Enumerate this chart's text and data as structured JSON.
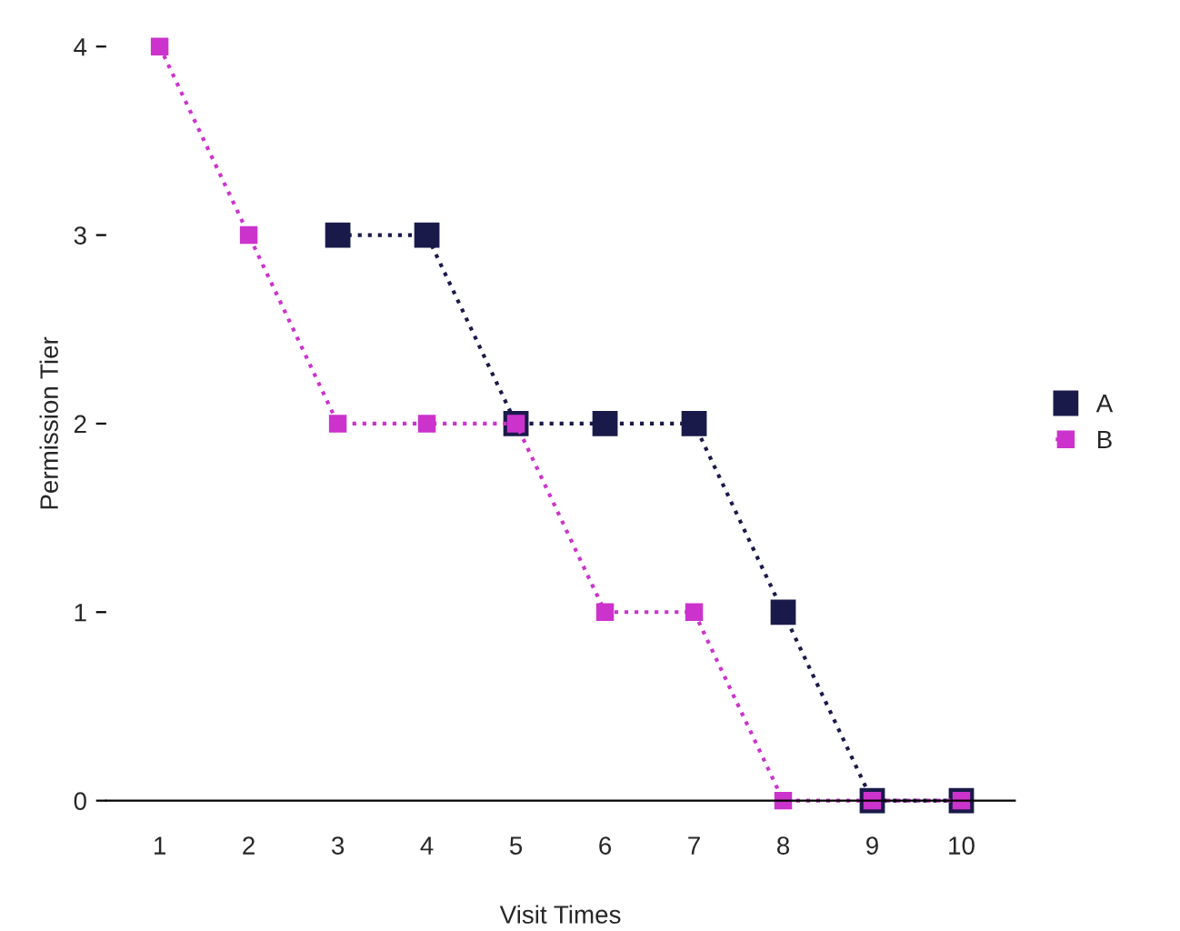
{
  "chart_data": {
    "type": "line",
    "xlabel": "Visit Times",
    "ylabel": "Permission Tier",
    "categories": [
      "1",
      "2",
      "3",
      "4",
      "5",
      "6",
      "7",
      "8",
      "9",
      "10"
    ],
    "series": [
      {
        "name": "A",
        "color": "#1a1a4a",
        "values": [
          null,
          null,
          3,
          3,
          2,
          2,
          2,
          1,
          0,
          0
        ]
      },
      {
        "name": "B",
        "color": "#cc33cc",
        "values": [
          4,
          3,
          2,
          2,
          2,
          1,
          1,
          0,
          0,
          0
        ]
      }
    ],
    "ylim": [
      0,
      4
    ],
    "yticks": [
      0,
      1,
      2,
      3,
      4
    ],
    "marker": "square",
    "line_style": "dotted",
    "legend": "right",
    "grid": false
  }
}
